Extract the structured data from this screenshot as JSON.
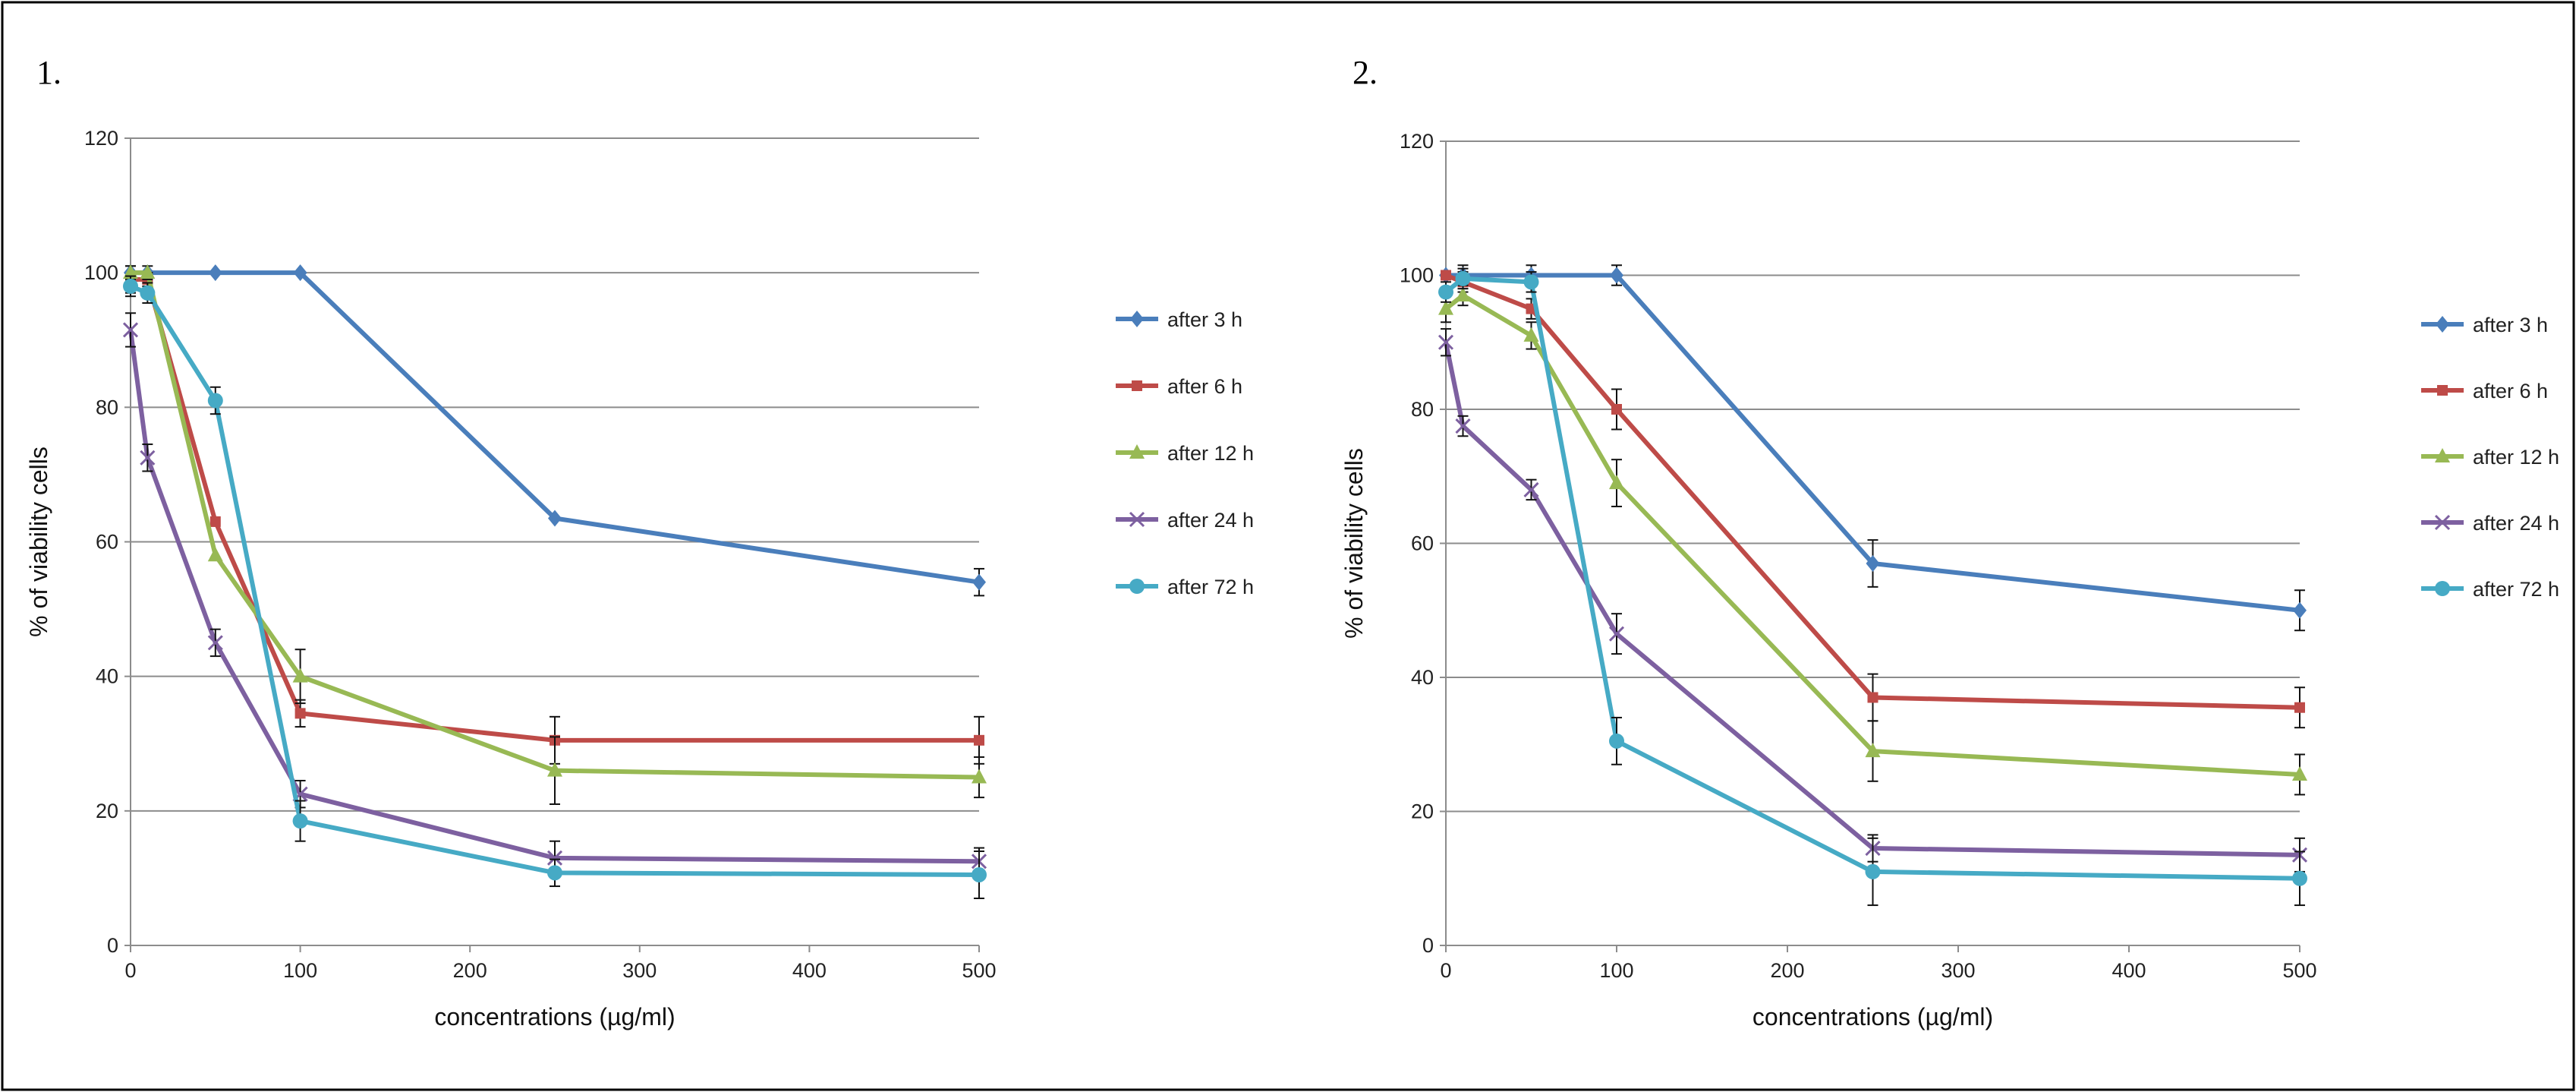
{
  "chart_data": [
    {
      "type": "line",
      "panel_label": "1.",
      "xlabel": "concentrations (µg/ml)",
      "ylabel": "% of viability cells",
      "xlim": [
        0,
        500
      ],
      "ylim": [
        0,
        120
      ],
      "xticks": [
        0,
        100,
        200,
        300,
        400,
        500
      ],
      "yticks": [
        0,
        20,
        40,
        60,
        80,
        100,
        120
      ],
      "grid": "horizontal",
      "legend": "right",
      "x": [
        0,
        10,
        50,
        100,
        250,
        500
      ],
      "series": [
        {
          "name": "after 3 h",
          "color": "#4a7ebb",
          "marker": "diamond",
          "values": [
            100,
            100,
            100,
            100,
            63.5,
            54
          ],
          "errors": [
            0,
            0,
            0,
            0,
            0,
            2
          ]
        },
        {
          "name": "after 6 h",
          "color": "#be4b48",
          "marker": "square",
          "values": [
            99,
            99,
            63,
            34.5,
            30.5,
            30.5
          ],
          "errors": [
            2,
            1,
            0,
            2,
            3.5,
            3.5
          ]
        },
        {
          "name": "after 12 h",
          "color": "#98b954",
          "marker": "triangle",
          "values": [
            100,
            100,
            58,
            40,
            26,
            25
          ],
          "errors": [
            1,
            1,
            0,
            4,
            5,
            3
          ]
        },
        {
          "name": "after 24 h",
          "color": "#7d60a0",
          "marker": "x",
          "values": [
            91.5,
            72.5,
            45,
            22.5,
            13,
            12.5
          ],
          "errors": [
            2.5,
            2,
            2,
            2,
            2.5,
            2
          ]
        },
        {
          "name": "after 72 h",
          "color": "#46aac5",
          "marker": "circle",
          "values": [
            98,
            97,
            81,
            18.5,
            10.8,
            10.5
          ],
          "errors": [
            1.5,
            1.5,
            2,
            3,
            2,
            3.5
          ]
        }
      ]
    },
    {
      "type": "line",
      "panel_label": "2.",
      "xlabel": "concentrations (µg/ml)",
      "ylabel": "% of viability cells",
      "xlim": [
        0,
        500
      ],
      "ylim": [
        0,
        120
      ],
      "xticks": [
        0,
        100,
        200,
        300,
        400,
        500
      ],
      "yticks": [
        0,
        20,
        40,
        60,
        80,
        100,
        120
      ],
      "grid": "horizontal",
      "legend": "right",
      "x": [
        0,
        10,
        50,
        100,
        250,
        500
      ],
      "series": [
        {
          "name": "after 3 h",
          "color": "#4a7ebb",
          "marker": "diamond",
          "values": [
            100,
            100,
            100,
            100,
            57,
            50
          ],
          "errors": [
            0,
            1.5,
            1.5,
            1.5,
            3.5,
            3
          ]
        },
        {
          "name": "after 6 h",
          "color": "#be4b48",
          "marker": "square",
          "values": [
            100,
            99,
            95,
            80,
            37,
            35.5
          ],
          "errors": [
            0,
            1.5,
            1.5,
            3,
            3.5,
            3
          ]
        },
        {
          "name": "after 12 h",
          "color": "#98b954",
          "marker": "triangle",
          "values": [
            95,
            97,
            91,
            69,
            29,
            25.5
          ],
          "errors": [
            2,
            1.5,
            2,
            3.5,
            4.5,
            3
          ]
        },
        {
          "name": "after 24 h",
          "color": "#7d60a0",
          "marker": "x",
          "values": [
            90,
            77.5,
            68,
            46.5,
            14.5,
            13.5
          ],
          "errors": [
            2,
            1.5,
            1.5,
            3,
            2,
            2.5
          ]
        },
        {
          "name": "after 72 h",
          "color": "#46aac5",
          "marker": "circle",
          "values": [
            97.5,
            99.5,
            99,
            30.5,
            11,
            10
          ],
          "errors": [
            1.5,
            1.5,
            1.5,
            3.5,
            5,
            4
          ]
        }
      ]
    }
  ]
}
